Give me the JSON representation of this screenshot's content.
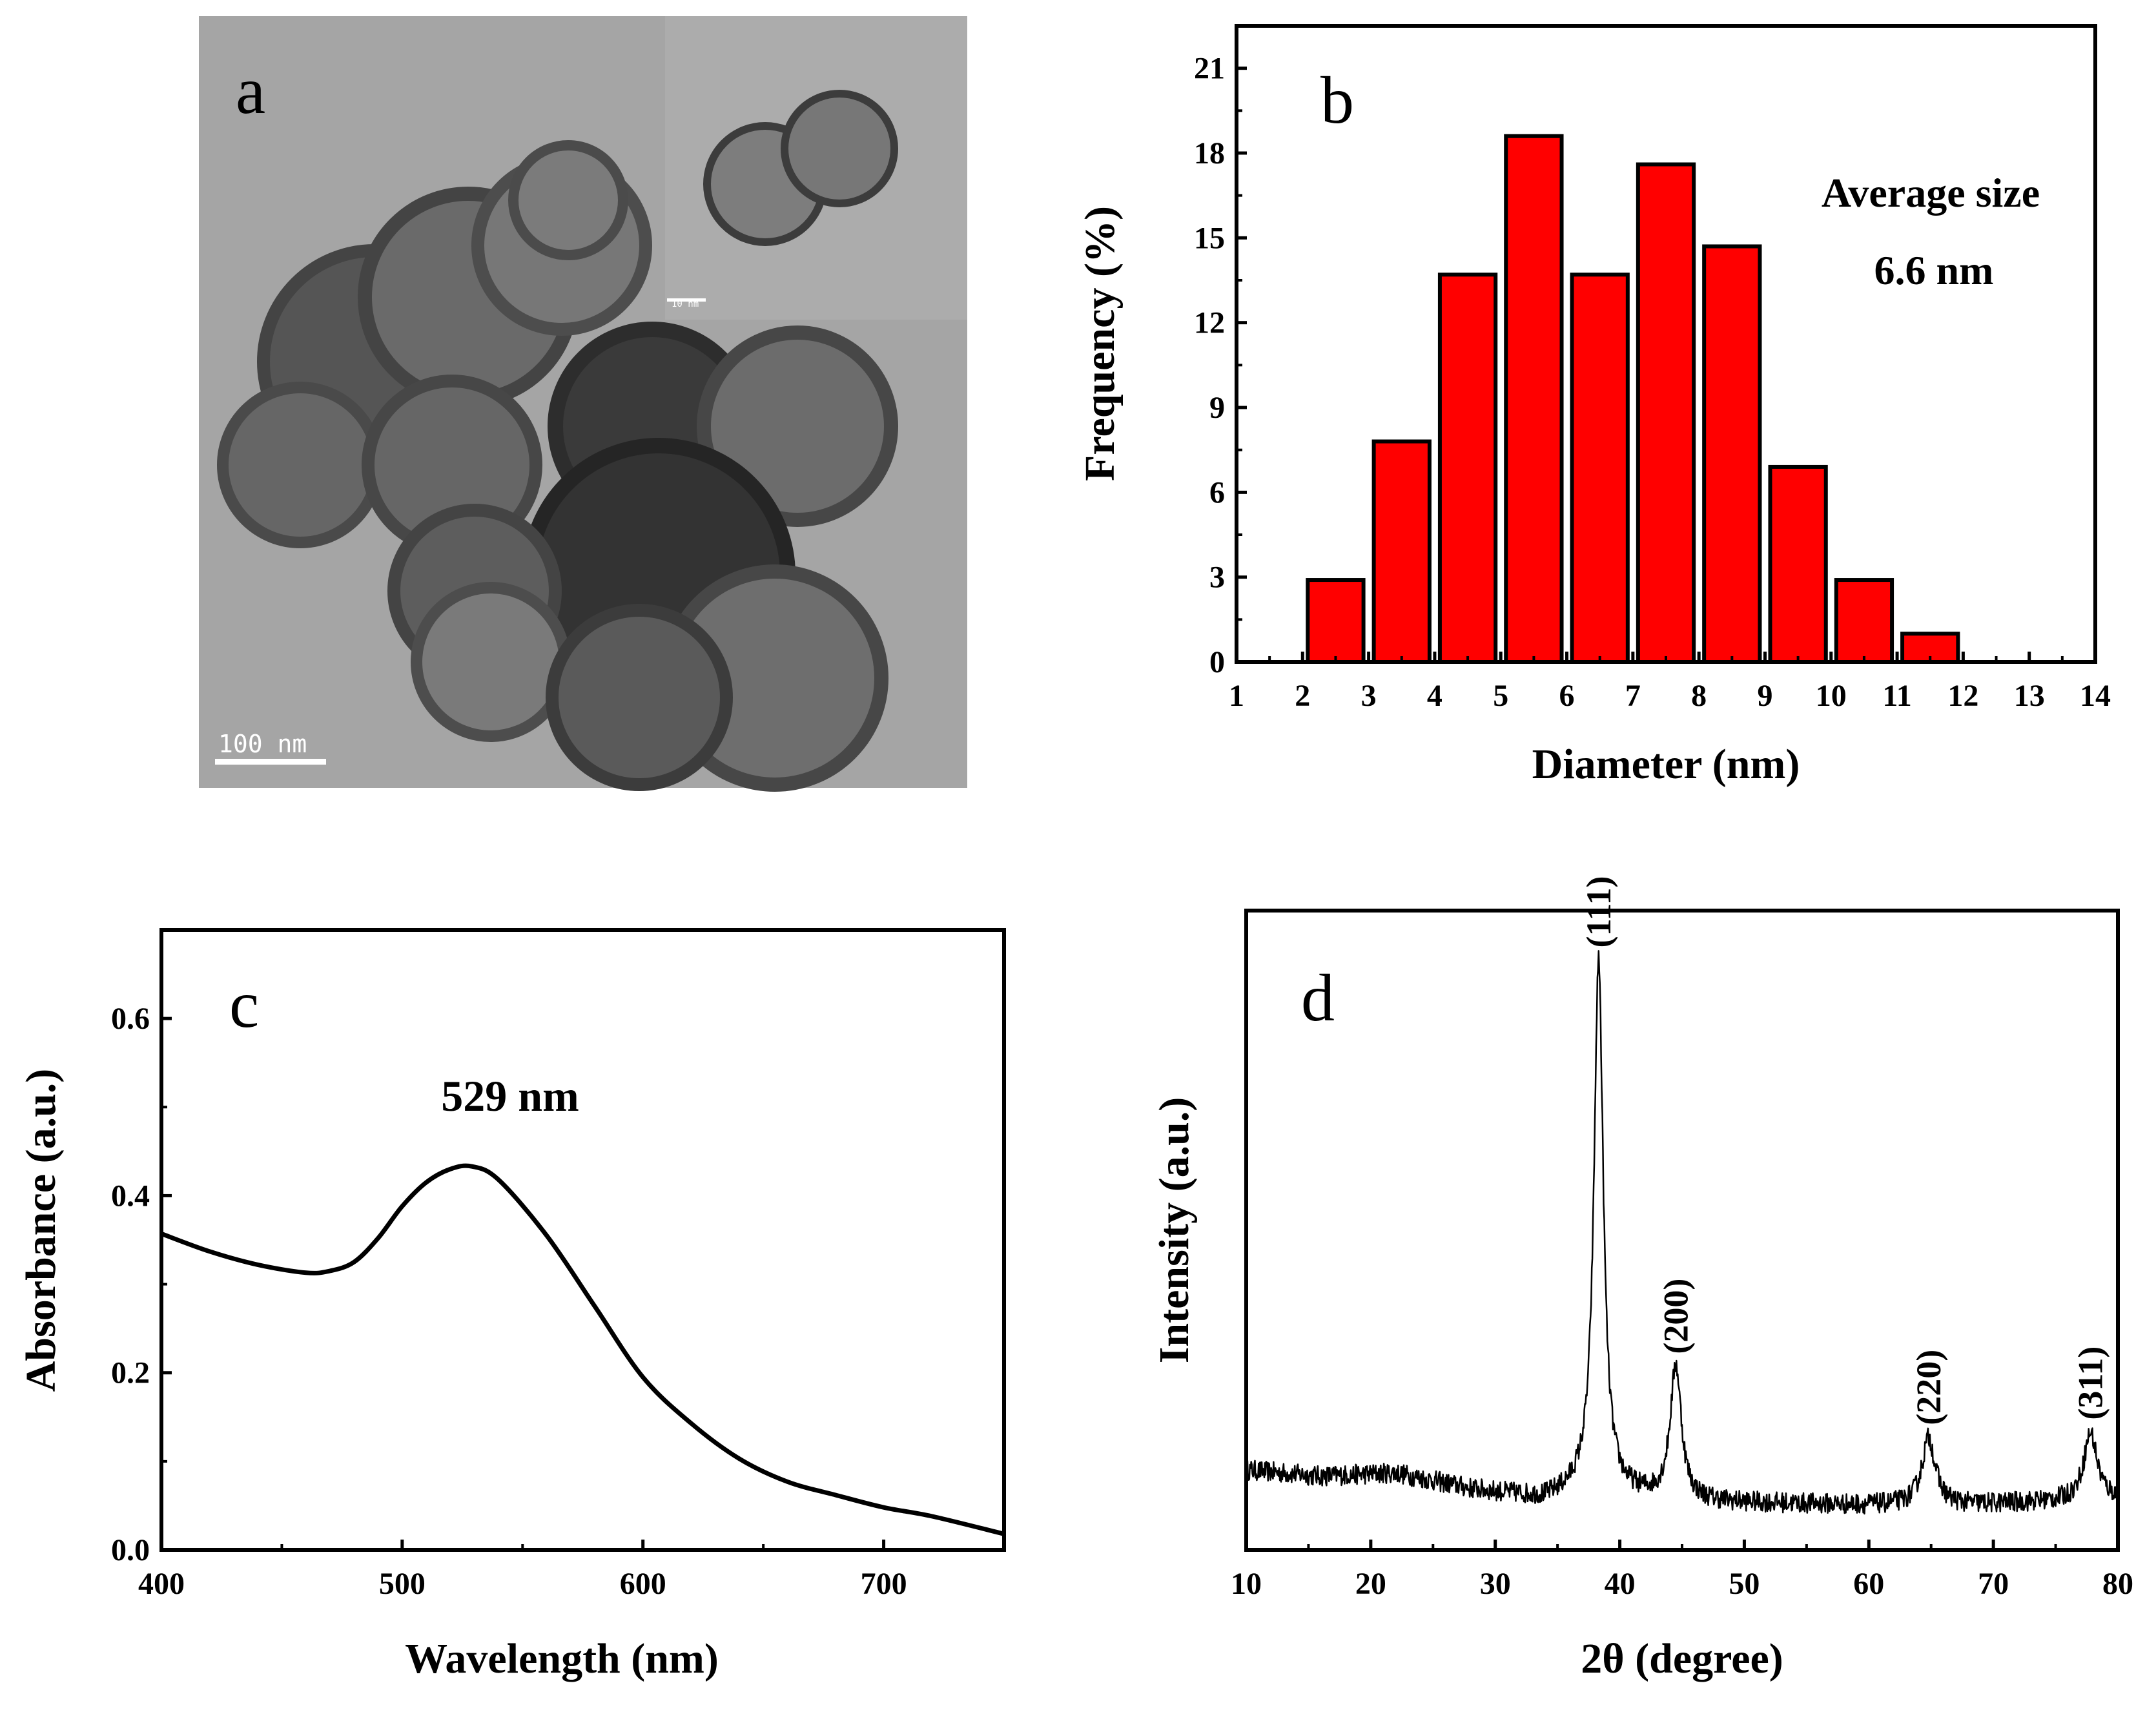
{
  "panels": {
    "a": {
      "letter": "a",
      "scale_bar_label": "100 nm",
      "inset_scale_label": "10 nm",
      "image_desc": "TEM micrograph"
    },
    "b": {
      "letter": "b"
    },
    "c": {
      "letter": "c"
    },
    "d": {
      "letter": "d"
    }
  },
  "chart_data": [
    {
      "panel": "b",
      "type": "bar",
      "xlabel": "Diameter (nm)",
      "ylabel": "Frequency (%)",
      "xlim": [
        1,
        14
      ],
      "ylim": [
        0,
        22.5
      ],
      "xticks": [
        1,
        2,
        3,
        4,
        5,
        6,
        7,
        8,
        9,
        10,
        11,
        12,
        13,
        14
      ],
      "yticks": [
        0,
        3,
        6,
        9,
        12,
        15,
        18,
        21
      ],
      "bin_edges": [
        2,
        3,
        4,
        5,
        6,
        7,
        8,
        9,
        10,
        11,
        12
      ],
      "values": [
        2.9,
        7.8,
        13.7,
        18.6,
        13.7,
        17.6,
        14.7,
        6.9,
        2.9,
        1.0
      ],
      "bar_color": "#ff0000",
      "annotation_line1": "Average size",
      "annotation_line2": "6.6 nm"
    },
    {
      "panel": "c",
      "type": "line",
      "xlabel": "Wavelength (nm)",
      "ylabel": "Absorbance (a.u.)",
      "xlim": [
        400,
        750
      ],
      "ylim": [
        0.0,
        0.7
      ],
      "xticks": [
        400,
        500,
        600,
        700
      ],
      "xtick_labels": [
        "400",
        "500",
        "600",
        "700"
      ],
      "yticks": [
        0.0,
        0.2,
        0.4,
        0.6
      ],
      "ytick_labels": [
        "0.0",
        "0.2",
        "0.4",
        "0.6"
      ],
      "x": [
        400,
        420,
        440,
        460,
        470,
        480,
        490,
        500,
        510,
        520,
        529,
        540,
        560,
        580,
        600,
        620,
        640,
        660,
        680,
        700,
        720,
        750
      ],
      "y": [
        0.357,
        0.337,
        0.322,
        0.313,
        0.315,
        0.325,
        0.352,
        0.388,
        0.415,
        0.43,
        0.433,
        0.418,
        0.355,
        0.275,
        0.195,
        0.143,
        0.103,
        0.077,
        0.062,
        0.048,
        0.038,
        0.018
      ],
      "annotation": "529 nm"
    },
    {
      "panel": "d",
      "type": "line",
      "xlabel": "2θ (degree)",
      "ylabel": "Intensity (a.u.)",
      "xlim": [
        10,
        80
      ],
      "ylim": [
        0,
        100
      ],
      "xticks": [
        10,
        20,
        30,
        40,
        50,
        60,
        70,
        80
      ],
      "baseline": [
        [
          10,
          12.5
        ],
        [
          16,
          11.5
        ],
        [
          22,
          12.0
        ],
        [
          28,
          9.5
        ],
        [
          34,
          8.0
        ],
        [
          37,
          9.5
        ],
        [
          45,
          7.5
        ],
        [
          60,
          7.0
        ],
        [
          68,
          7.0
        ],
        [
          74,
          7.5
        ],
        [
          80,
          8.0
        ]
      ],
      "peaks": [
        {
          "position": 38.3,
          "height": 83.0,
          "width": 0.45,
          "label": "(111)"
        },
        {
          "position": 44.5,
          "height": 21.0,
          "width": 0.55,
          "label": "(200)"
        },
        {
          "position": 64.8,
          "height": 10.5,
          "width": 0.65,
          "label": "(220)"
        },
        {
          "position": 77.8,
          "height": 10.5,
          "width": 0.65,
          "label": "(311)"
        }
      ],
      "noise_amplitude": 1.6
    }
  ]
}
